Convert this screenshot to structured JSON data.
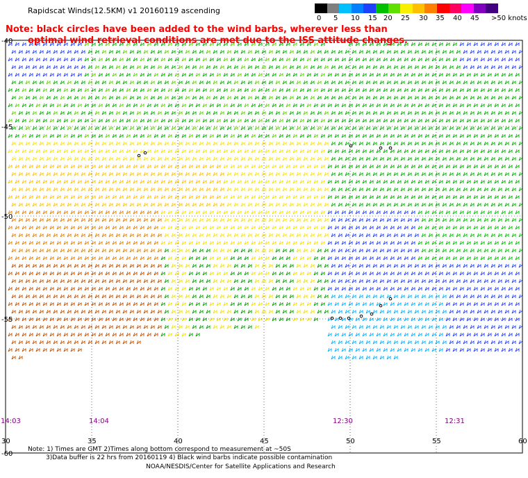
{
  "title": "Rapidscat Winds(12.5KM) v1 20160119 ascending",
  "legend": {
    "unit": "knots",
    "labels": [
      "0",
      "5",
      "10",
      "15",
      "20",
      "25",
      "30",
      "35",
      "40",
      "45",
      ">50 knots"
    ],
    "colors": [
      "#000000",
      "#7f7f7f",
      "#00c0ff",
      "#0080ff",
      "#2040ff",
      "#00c000",
      "#60e000",
      "#f8f000",
      "#ffc000",
      "#ff8000",
      "#ff0000",
      "#ff0060",
      "#ff00ff",
      "#8000c0",
      "#400080"
    ]
  },
  "note_line1": "Note: black circles have been added to the wind barbs, wherever less than",
  "note_line2": "optimal wind retrieval conditions are met due to the ISS attitude changes.",
  "map": {
    "lat_labels": [
      "-40",
      "-45",
      "-50",
      "-55",
      "-60"
    ],
    "lon_labels": [
      "30",
      "35",
      "40",
      "45",
      "50",
      "55",
      "60"
    ],
    "time_labels": [
      "14:03",
      "14:04",
      "12:30",
      "12:31"
    ]
  },
  "footer": {
    "line1": "Note: 1) Times are GMT 2)Times along bottom correspond to measurement at ~50S",
    "line2": "3)Data buffer is 22 hrs from 20160119 4) Black wind barbs indicate possible contamination",
    "line3": "NOAA/NESDIS/Center for Satellite Applications and Research"
  }
}
